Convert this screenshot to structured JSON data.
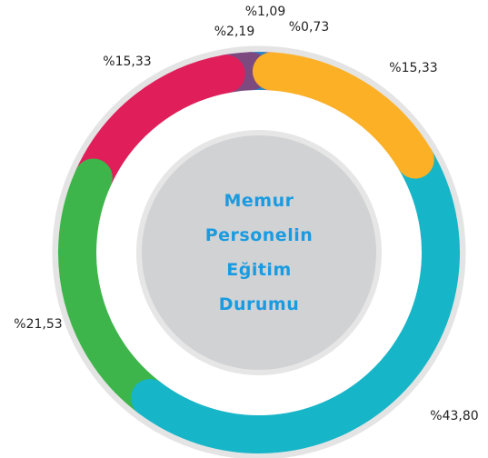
{
  "chart_data": {
    "type": "doughnut",
    "title": "Memur Personelin Eğitim Durumu",
    "values": [
      15.33,
      43.8,
      21.53,
      15.33,
      2.19,
      1.09,
      0.73
    ],
    "value_labels": [
      "%15,33",
      "%43,80",
      "%21,53",
      "%15,33",
      "%2,19",
      "%1,09",
      "%0,73"
    ],
    "colors": [
      "#fbb026",
      "#17b5c8",
      "#3db54a",
      "#e01e5a",
      "#7d4a80",
      "#2a84c6",
      "#f06b8a"
    ]
  }
}
